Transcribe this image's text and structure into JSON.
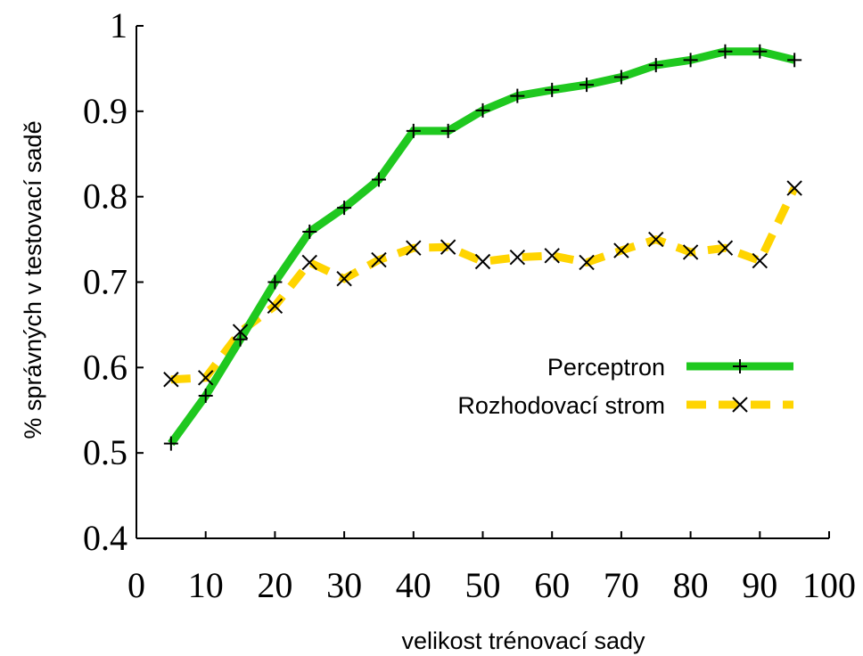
{
  "chart_data": {
    "type": "line",
    "xlabel": "velikost trénovací sady",
    "ylabel": "% správných v testovací sadě",
    "xlim": [
      0,
      100
    ],
    "ylim": [
      0.4,
      1
    ],
    "xticks": [
      0,
      10,
      20,
      30,
      40,
      50,
      60,
      70,
      80,
      90,
      100
    ],
    "yticks": [
      0.4,
      0.5,
      0.6,
      0.7,
      0.8,
      0.9,
      1
    ],
    "xtick_labels": [
      "0",
      "10",
      "20",
      "30",
      "40",
      "50",
      "60",
      "70",
      "80",
      "90",
      "100"
    ],
    "ytick_labels": [
      "0.4",
      "0.5",
      "0.6",
      "0.7",
      "0.8",
      "0.9",
      "1"
    ],
    "grid": false,
    "legend_position": "center-right",
    "x": [
      5,
      10,
      15,
      20,
      25,
      30,
      35,
      40,
      45,
      50,
      55,
      60,
      65,
      70,
      75,
      80,
      85,
      90,
      95
    ],
    "series": [
      {
        "name": "Perceptron",
        "color": "#1fc81f",
        "line_style": "solid",
        "marker": "plus",
        "values": [
          0.511,
          0.567,
          0.633,
          0.7,
          0.759,
          0.787,
          0.82,
          0.877,
          0.877,
          0.901,
          0.918,
          0.925,
          0.931,
          0.94,
          0.954,
          0.96,
          0.97,
          0.97,
          0.96
        ]
      },
      {
        "name": "Rozhodovací strom",
        "color": "#ffd400",
        "line_style": "dashed",
        "marker": "cross",
        "values": [
          0.586,
          0.588,
          0.642,
          0.672,
          0.723,
          0.704,
          0.726,
          0.74,
          0.741,
          0.724,
          0.729,
          0.731,
          0.723,
          0.737,
          0.75,
          0.735,
          0.74,
          0.725,
          0.81
        ]
      }
    ]
  }
}
